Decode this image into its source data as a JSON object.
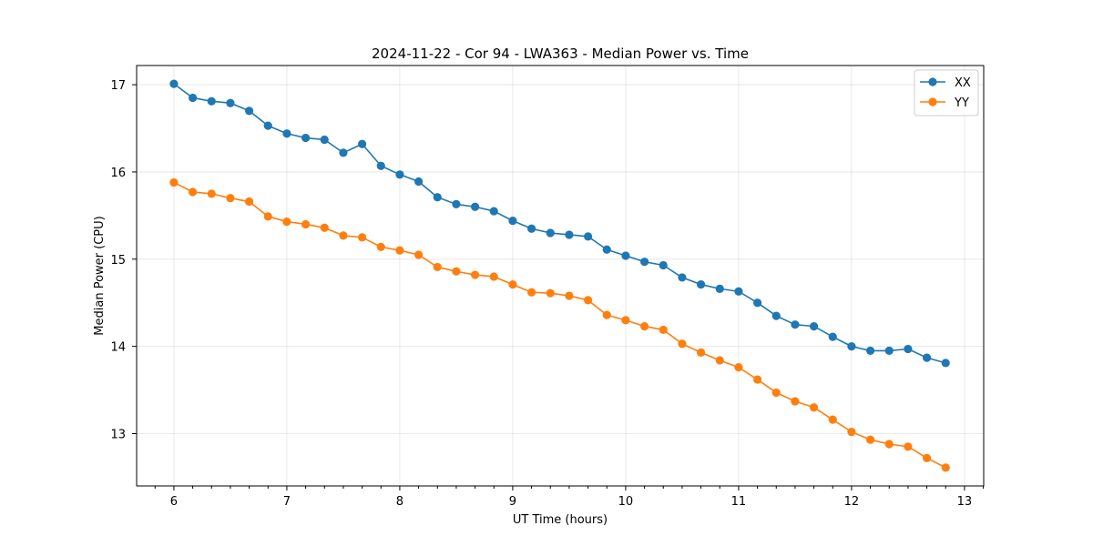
{
  "chart_data": {
    "type": "line",
    "title": "2024-11-22 - Cor 94 - LWA363 - Median Power vs. Time",
    "xlabel": "UT Time (hours)",
    "ylabel": "Median Power (CPU)",
    "xlim": [
      5.67,
      13.17
    ],
    "ylim": [
      12.4,
      17.22
    ],
    "xticks": [
      6,
      7,
      8,
      9,
      10,
      11,
      12,
      13
    ],
    "yticks": [
      13,
      14,
      15,
      16,
      17
    ],
    "grid": true,
    "legend_position": "top-right",
    "x": [
      6.0,
      6.1667,
      6.3333,
      6.5,
      6.6667,
      6.8333,
      7.0,
      7.1667,
      7.3333,
      7.5,
      7.6667,
      7.8333,
      8.0,
      8.1667,
      8.3333,
      8.5,
      8.6667,
      8.8333,
      9.0,
      9.1667,
      9.3333,
      9.5,
      9.6667,
      9.8333,
      10.0,
      10.1667,
      10.3333,
      10.5,
      10.6667,
      10.8333,
      11.0,
      11.1667,
      11.3333,
      11.5,
      11.6667,
      11.8333,
      12.0,
      12.1667,
      12.3333,
      12.5,
      12.6667,
      12.8333
    ],
    "series": [
      {
        "name": "XX",
        "color": "#1f77b4",
        "values": [
          17.01,
          16.85,
          16.81,
          16.79,
          16.7,
          16.53,
          16.44,
          16.39,
          16.37,
          16.22,
          16.32,
          16.07,
          15.97,
          15.89,
          15.71,
          15.63,
          15.6,
          15.55,
          15.44,
          15.35,
          15.3,
          15.28,
          15.26,
          15.11,
          15.04,
          14.97,
          14.93,
          14.79,
          14.71,
          14.66,
          14.63,
          14.5,
          14.35,
          14.25,
          14.23,
          14.11,
          14.0,
          13.95,
          13.95,
          13.97,
          13.87,
          13.81
        ]
      },
      {
        "name": "YY",
        "color": "#ff7f0e",
        "values": [
          15.88,
          15.77,
          15.75,
          15.7,
          15.66,
          15.49,
          15.43,
          15.4,
          15.36,
          15.27,
          15.25,
          15.14,
          15.1,
          15.05,
          14.91,
          14.86,
          14.82,
          14.8,
          14.71,
          14.62,
          14.61,
          14.58,
          14.53,
          14.36,
          14.3,
          14.23,
          14.19,
          14.03,
          13.93,
          13.84,
          13.76,
          13.62,
          13.47,
          13.37,
          13.3,
          13.16,
          13.02,
          12.93,
          12.88,
          12.85,
          12.72,
          12.61
        ]
      }
    ]
  }
}
